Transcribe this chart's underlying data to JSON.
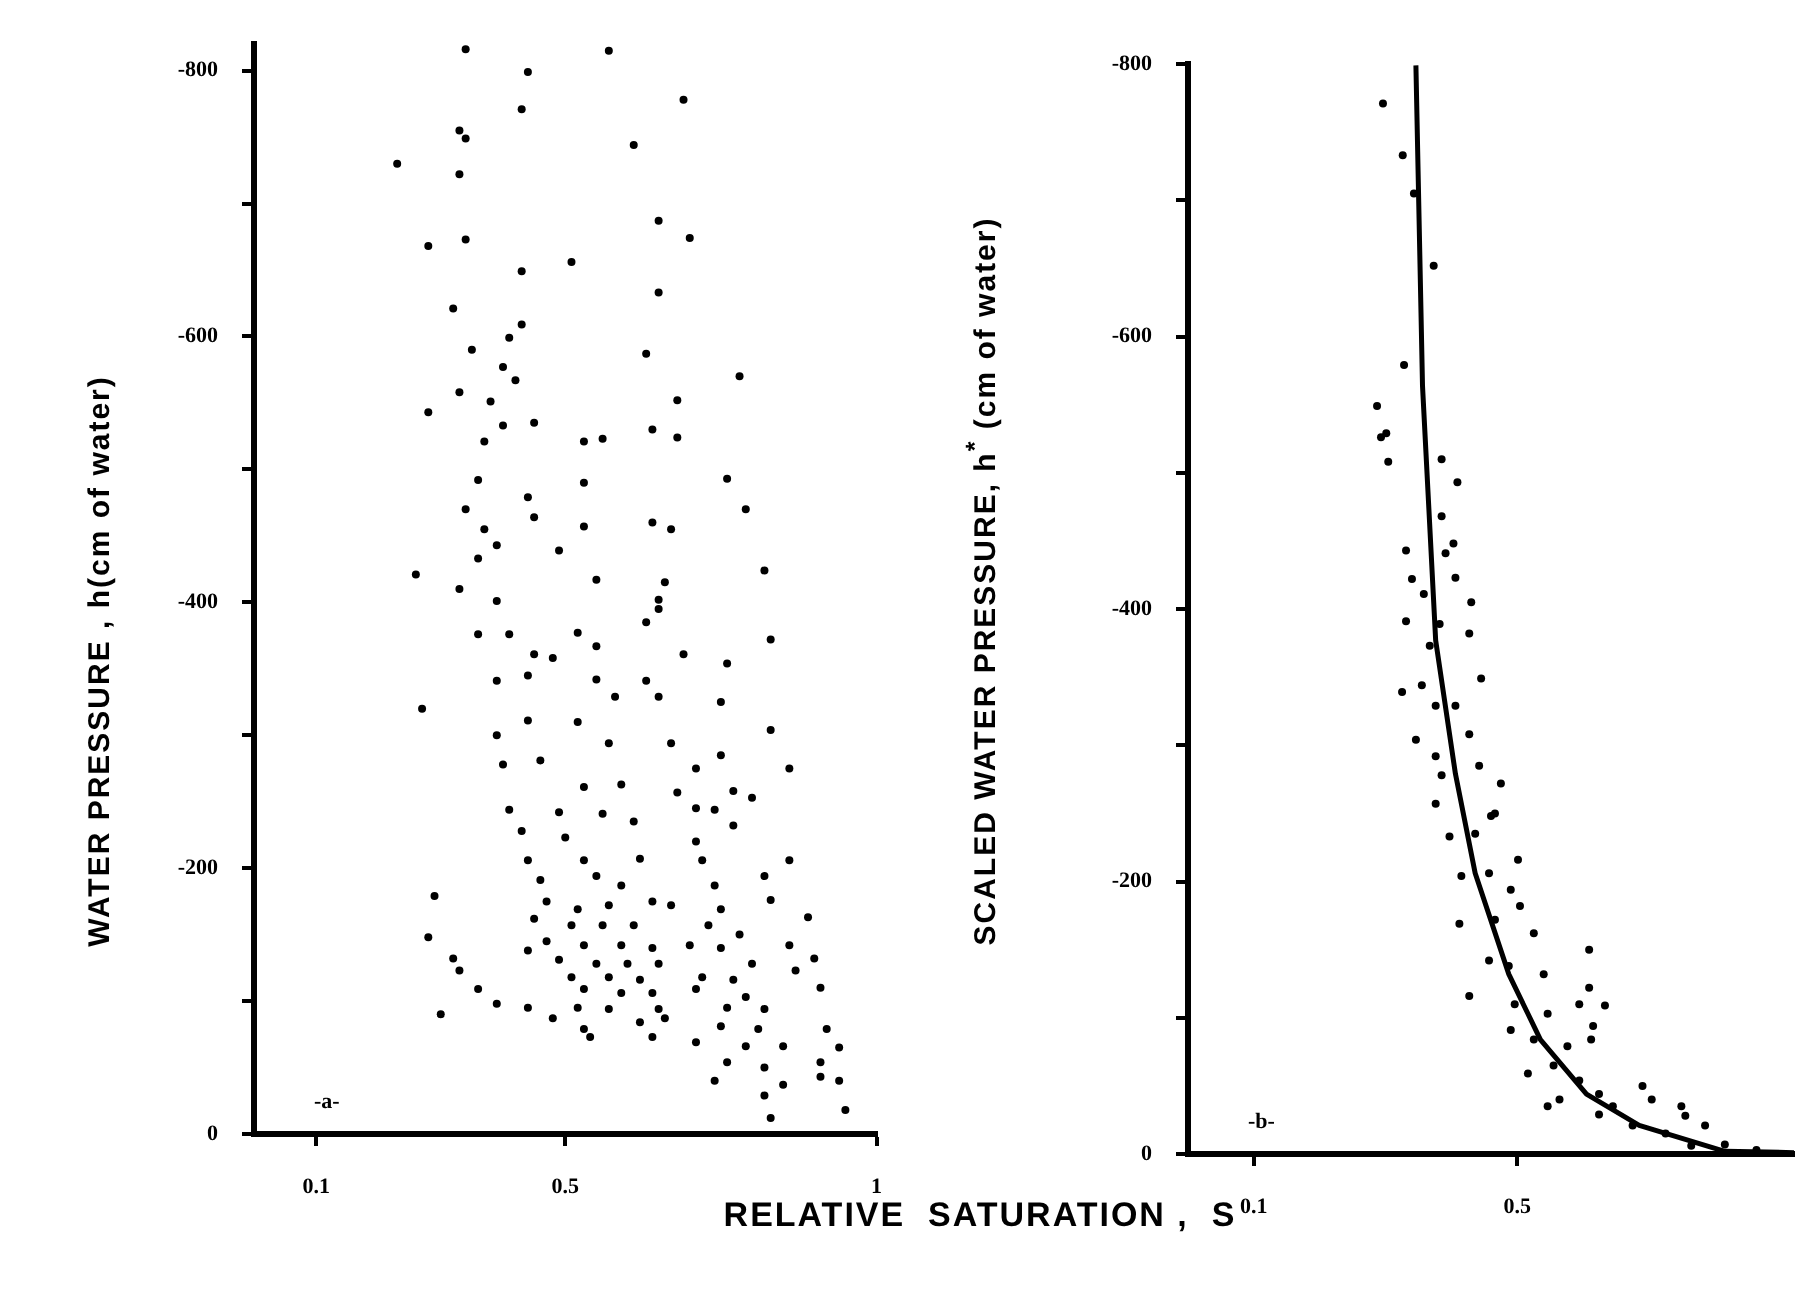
{
  "chart_data": [
    {
      "type": "scatter",
      "xlabel": "RELATIVE  SATURATION ,  S",
      "ylabel": "WATER   PRESSURE , h(cm of water)",
      "annotations": [
        "-a-"
      ],
      "xlim": [
        0,
        1
      ],
      "ylim": [
        0,
        -820
      ],
      "xticks": [
        0.1,
        0.5,
        1
      ],
      "yticks": [
        0,
        {
          "value": -100,
          "label": null
        },
        -200,
        {
          "value": -300,
          "label": null
        },
        -400,
        {
          "value": -500,
          "label": null
        },
        -600,
        {
          "value": -700,
          "label": null
        },
        -800
      ],
      "legend": false,
      "series": [
        {
          "color": "#000000",
          "marker": "circle",
          "x": [
            0.34,
            0.57,
            0.44,
            0.69,
            0.43,
            0.33,
            0.34,
            0.61,
            0.23,
            0.33,
            0.65,
            0.7,
            0.28,
            0.34,
            0.51,
            0.43,
            0.65,
            0.32,
            0.43,
            0.41,
            0.35,
            0.63,
            0.4,
            0.42,
            0.78,
            0.33,
            0.38,
            0.68,
            0.28,
            0.4,
            0.45,
            0.37,
            0.53,
            0.56,
            0.64,
            0.68,
            0.36,
            0.53,
            0.76,
            0.44,
            0.34,
            0.45,
            0.37,
            0.53,
            0.64,
            0.67,
            0.79,
            0.39,
            0.49,
            0.36,
            0.82,
            0.26,
            0.55,
            0.66,
            0.33,
            0.39,
            0.65,
            0.65,
            0.36,
            0.41,
            0.52,
            0.63,
            0.55,
            0.83,
            0.45,
            0.48,
            0.69,
            0.76,
            0.27,
            0.39,
            0.44,
            0.55,
            0.58,
            0.63,
            0.65,
            0.75,
            0.44,
            0.52,
            0.39,
            0.83,
            0.57,
            0.67,
            0.75,
            0.4,
            0.46,
            0.71,
            0.86,
            0.53,
            0.59,
            0.68,
            0.77,
            0.41,
            0.49,
            0.56,
            0.71,
            0.74,
            0.8,
            0.43,
            0.5,
            0.61,
            0.71,
            0.77,
            0.44,
            0.53,
            0.62,
            0.72,
            0.82,
            0.86,
            0.46,
            0.55,
            0.59,
            0.74,
            0.29,
            0.47,
            0.52,
            0.57,
            0.64,
            0.67,
            0.75,
            0.83,
            0.89,
            0.45,
            0.51,
            0.56,
            0.61,
            0.73,
            0.78,
            0.28,
            0.47,
            0.53,
            0.59,
            0.64,
            0.7,
            0.75,
            0.86,
            0.32,
            0.44,
            0.49,
            0.55,
            0.6,
            0.65,
            0.8,
            0.9,
            0.33,
            0.51,
            0.57,
            0.62,
            0.72,
            0.77,
            0.87,
            0.36,
            0.53,
            0.59,
            0.64,
            0.71,
            0.79,
            0.91,
            0.39,
            0.44,
            0.52,
            0.57,
            0.65,
            0.76,
            0.82,
            0.3,
            0.48,
            0.53,
            0.62,
            0.66,
            0.75,
            0.81,
            0.92,
            0.54,
            0.64,
            0.71,
            0.79,
            0.85,
            0.94,
            0.76,
            0.82,
            0.91,
            0.74,
            0.85,
            0.94,
            0.82,
            0.95,
            0.83,
            0.91
          ],
          "values": [
            -816,
            -815,
            -799,
            -778,
            -771,
            -755,
            -749,
            -744,
            -730,
            -722,
            -687,
            -674,
            -668,
            -673,
            -656,
            -649,
            -633,
            -621,
            -609,
            -599,
            -590,
            -587,
            -577,
            -567,
            -570,
            -558,
            -551,
            -552,
            -543,
            -533,
            -535,
            -521,
            -521,
            -523,
            -530,
            -524,
            -492,
            -490,
            -493,
            -479,
            -470,
            -464,
            -455,
            -457,
            -460,
            -455,
            -470,
            -443,
            -439,
            -433,
            -424,
            -421,
            -417,
            -415,
            -410,
            -401,
            -402,
            -395,
            -376,
            -376,
            -377,
            -385,
            -367,
            -372,
            -361,
            -358,
            -361,
            -354,
            -320,
            -341,
            -345,
            -342,
            -329,
            -341,
            -329,
            -325,
            -311,
            -310,
            -300,
            -304,
            -294,
            -294,
            -285,
            -278,
            -281,
            -275,
            -275,
            -261,
            -263,
            -257,
            -258,
            -244,
            -242,
            -241,
            -245,
            -244,
            -253,
            -228,
            -223,
            -235,
            -220,
            -232,
            -206,
            -206,
            -207,
            -206,
            -194,
            -206,
            -191,
            -194,
            -187,
            -187,
            -179,
            -175,
            -169,
            -172,
            -175,
            -172,
            -169,
            -176,
            -163,
            -162,
            -157,
            -157,
            -157,
            -157,
            -150,
            -148,
            -145,
            -142,
            -142,
            -140,
            -142,
            -140,
            -142,
            -132,
            -138,
            -131,
            -128,
            -128,
            -128,
            -128,
            -132,
            -123,
            -118,
            -118,
            -116,
            -118,
            -116,
            -123,
            -109,
            -109,
            -106,
            -106,
            -109,
            -103,
            -110,
            -98,
            -95,
            -95,
            -94,
            -94,
            -95,
            -94,
            -90,
            -87,
            -79,
            -84,
            -87,
            -81,
            -79,
            -79,
            -73,
            -73,
            -69,
            -66,
            -66,
            -65,
            -54,
            -50,
            -54,
            -40,
            -37,
            -40,
            -29,
            -18,
            -12,
            -43
          ]
        }
      ]
    },
    {
      "type": "scatter",
      "ylabel": "SCALED WATER  PRESSURE, h$^{*}$ (cm of water)",
      "annotations": [
        "-b-"
      ],
      "xlim": [
        0,
        0.92
      ],
      "ylim": [
        0,
        -800
      ],
      "xticks": [
        0.1,
        0.5
      ],
      "yticks": [
        0,
        {
          "value": -100,
          "label": null
        },
        -200,
        {
          "value": -300,
          "label": null
        },
        -400,
        {
          "value": -500,
          "label": null
        },
        -600,
        {
          "value": -700,
          "label": null
        },
        -800
      ],
      "legend": false,
      "series": [
        {
          "color": "#000000",
          "marker": "circle",
          "x": [
            0.296,
            0.326,
            0.343,
            0.373,
            0.328,
            0.287,
            0.301,
            0.293,
            0.304,
            0.385,
            0.409,
            0.385,
            0.331,
            0.403,
            0.391,
            0.406,
            0.34,
            0.358,
            0.43,
            0.331,
            0.382,
            0.427,
            0.367,
            0.325,
            0.355,
            0.445,
            0.376,
            0.406,
            0.346,
            0.427,
            0.376,
            0.442,
            0.385,
            0.475,
            0.46,
            0.376,
            0.466,
            0.397,
            0.436,
            0.501,
            0.415,
            0.457,
            0.49,
            0.504,
            0.412,
            0.466,
            0.525,
            0.609,
            0.457,
            0.487,
            0.54,
            0.609,
            0.427,
            0.594,
            0.633,
            0.496,
            0.546,
            0.615,
            0.612,
            0.49,
            0.525,
            0.576,
            0.516,
            0.555,
            0.594,
            0.564,
            0.624,
            0.69,
            0.704,
            0.645,
            0.749,
            0.755,
            0.785,
            0.675,
            0.725,
            0.815,
            0.863,
            0.764,
            0.624,
            0.546
          ],
          "values": [
            -771,
            -733,
            -705,
            -652,
            -579,
            -549,
            -529,
            -526,
            -508,
            -510,
            -493,
            -468,
            -443,
            -448,
            -441,
            -423,
            -422,
            -411,
            -405,
            -391,
            -389,
            -382,
            -373,
            -339,
            -344,
            -349,
            -329,
            -329,
            -304,
            -308,
            -292,
            -285,
            -278,
            -272,
            -248,
            -257,
            -250,
            -233,
            -235,
            -216,
            -204,
            -206,
            -194,
            -182,
            -169,
            -172,
            -162,
            -150,
            -142,
            -138,
            -132,
            -122,
            -116,
            -110,
            -109,
            -110,
            -103,
            -94,
            -84,
            -91,
            -84,
            -79,
            -59,
            -65,
            -54,
            -40,
            -44,
            -50,
            -40,
            -35,
            -35,
            -28,
            -21,
            -21,
            -15,
            -7,
            -3,
            -6,
            -29,
            -35
          ]
        },
        {
          "type": "line",
          "color": "#000000",
          "line_style": "solid",
          "x": [
            0.346,
            0.356,
            0.376,
            0.406,
            0.436,
            0.487,
            0.535,
            0.605,
            0.685,
            0.815,
            0.92
          ],
          "values": [
            -799,
            -564,
            -377,
            -279,
            -206,
            -132,
            -84,
            -44,
            -21,
            -2,
            -1
          ]
        }
      ]
    }
  ]
}
